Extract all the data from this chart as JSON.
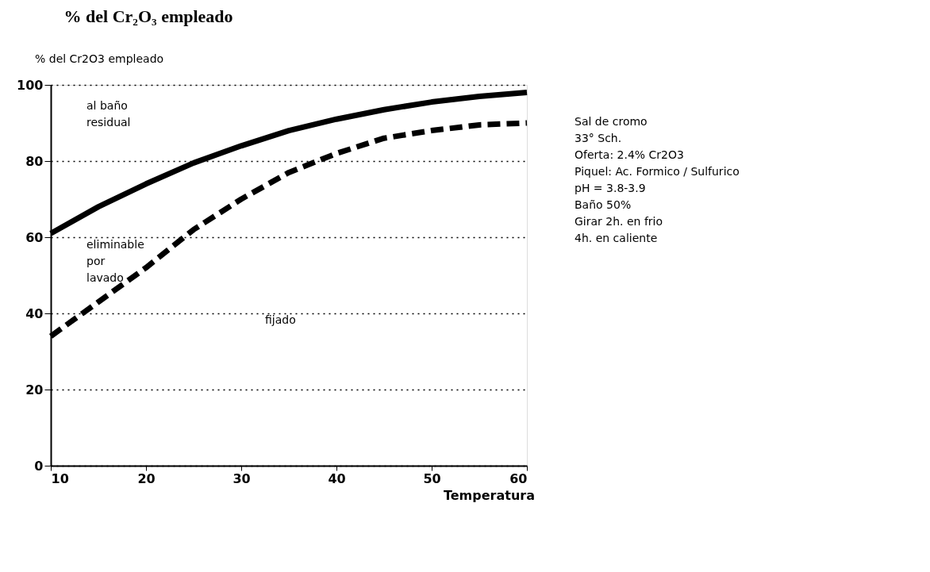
{
  "chart_data": {
    "type": "line",
    "title": "% del Cr₂O₃ empleado",
    "ylabel": "% del Cr2O3 empleado",
    "xlabel": "Temperatura",
    "x": [
      10,
      15,
      20,
      25,
      30,
      35,
      40,
      45,
      50,
      55,
      60
    ],
    "series": [
      {
        "color": "#000000",
        "line_style": "solid",
        "values": [
          61,
          68,
          74,
          79.5,
          84,
          88,
          91,
          93.5,
          95.5,
          97,
          98
        ]
      },
      {
        "color": "#000000",
        "line_style": "dashed",
        "values": [
          34,
          43,
          52,
          62,
          70,
          77,
          82,
          86,
          88,
          89.5,
          90
        ]
      }
    ],
    "xlim": [
      10,
      60
    ],
    "xticks": [
      10,
      20,
      30,
      40,
      50,
      60
    ],
    "ylim": [
      0,
      100
    ],
    "yticks": [
      0,
      20,
      40,
      60,
      80,
      100
    ],
    "grid": "y",
    "marker": "none",
    "annotations": [
      "al baño\nresidual",
      "eliminable\npor\nlavado",
      "fijado",
      "Sal de cromo\n33° Sch.\nOferta: 2.4% Cr2O3\nPiquel: Ac. Formico / Sulfurico\npH = 3.8-3.9\nBaño 50%\nGirar  2h. en frio\n          4h. en caliente"
    ]
  }
}
